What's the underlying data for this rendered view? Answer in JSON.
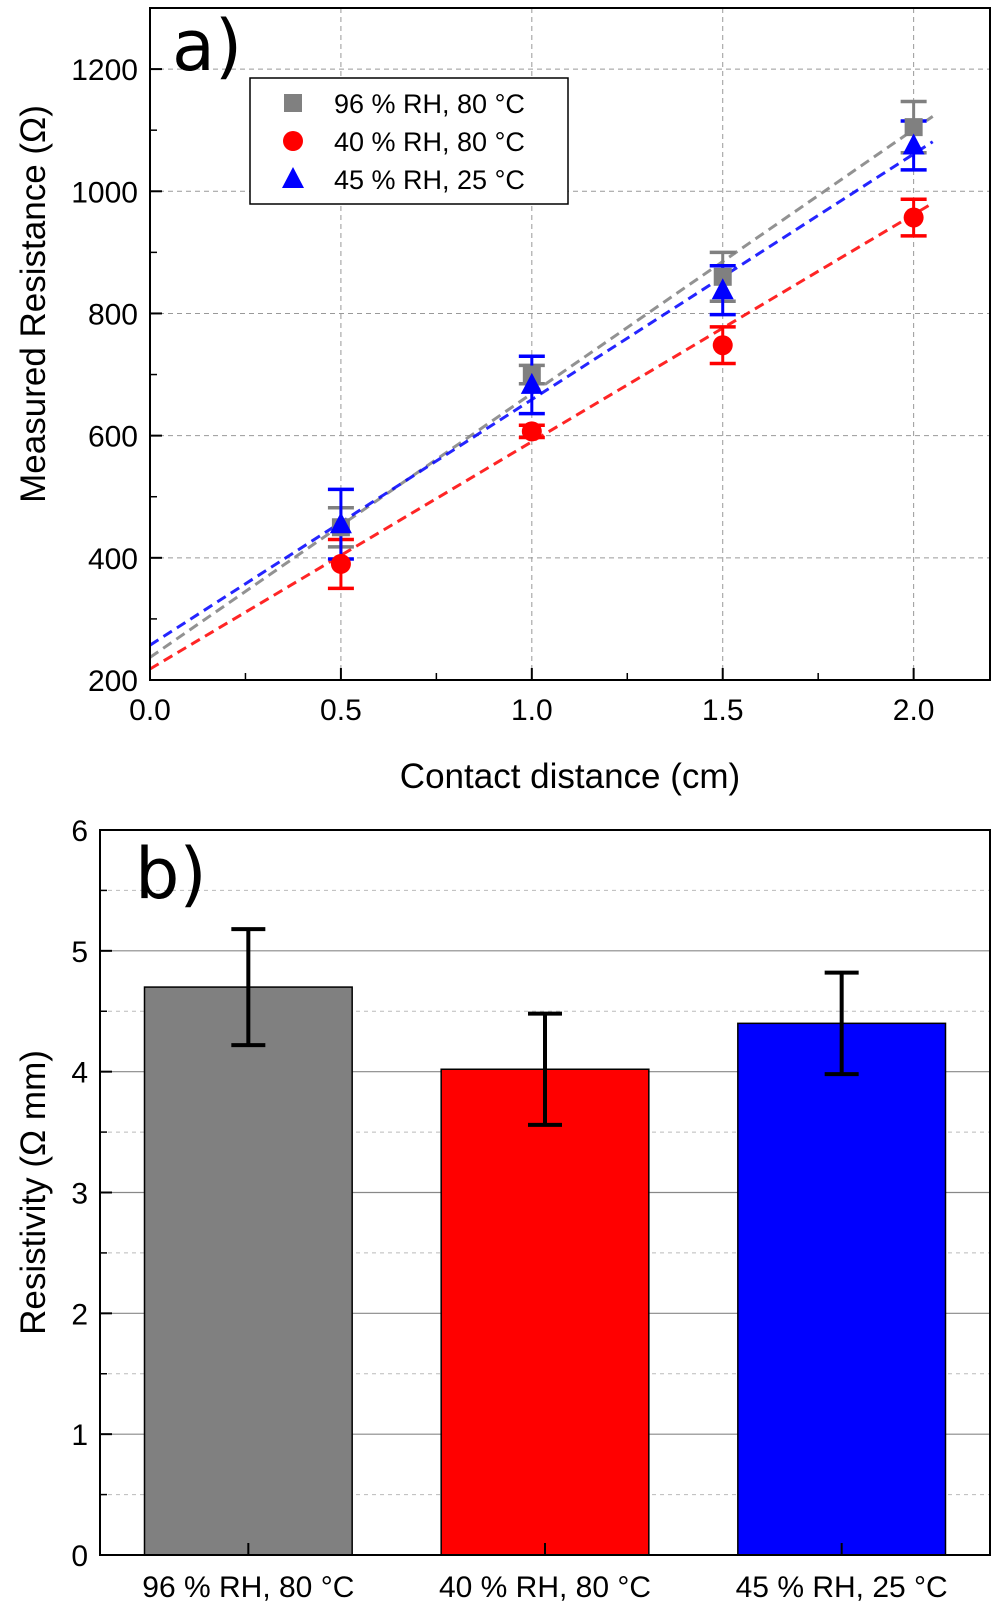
{
  "chart_data": [
    {
      "type": "scatter",
      "panel_label": "a)",
      "xlabel": "Contact distance (cm)",
      "ylabel": "Measured Resistance (Ω)",
      "xlim": [
        0.0,
        2.2
      ],
      "ylim": [
        200,
        1300
      ],
      "x_ticks": [
        "0.0",
        "0.5",
        "1.0",
        "1.5",
        "2.0"
      ],
      "y_ticks": [
        "200",
        "400",
        "600",
        "800",
        "1000",
        "1200"
      ],
      "grid": true,
      "legend_position": "top-left",
      "series": [
        {
          "name": "96 % RH, 80 °C",
          "marker": "square",
          "color": "#808080",
          "x": [
            0.5,
            1.0,
            1.5,
            2.0
          ],
          "y": [
            450,
            700,
            860,
            1105
          ],
          "error": [
            32,
            15,
            40,
            42
          ],
          "fit": {
            "intercept": 237,
            "slope": 432
          }
        },
        {
          "name": "40 % RH, 80 °C",
          "marker": "circle",
          "color": "#ff0000",
          "x": [
            0.5,
            1.0,
            1.5,
            2.0
          ],
          "y": [
            390,
            607,
            748,
            957
          ],
          "error": [
            40,
            10,
            30,
            30
          ],
          "fit": {
            "intercept": 218,
            "slope": 372
          }
        },
        {
          "name": "45 % RH, 25 °C",
          "marker": "triangle",
          "color": "#0000ff",
          "x": [
            0.5,
            1.0,
            1.5,
            2.0
          ],
          "y": [
            455,
            683,
            838,
            1075
          ],
          "error": [
            57,
            47,
            40,
            40
          ],
          "fit": {
            "intercept": 257,
            "slope": 402
          }
        }
      ]
    },
    {
      "type": "bar",
      "panel_label": "b)",
      "xlabel": "",
      "ylabel": "Resistivity (Ω mm)",
      "ylim": [
        0,
        6
      ],
      "y_ticks": [
        "0",
        "1",
        "2",
        "3",
        "4",
        "5",
        "6"
      ],
      "grid": true,
      "categories": [
        "96 % RH, 80 °C",
        "40 % RH, 80 °C",
        "45 % RH, 25 °C"
      ],
      "values": [
        4.7,
        4.02,
        4.4
      ],
      "errors": [
        0.48,
        0.46,
        0.42
      ],
      "colors": [
        "#808080",
        "#ff0000",
        "#0000ff"
      ]
    }
  ]
}
